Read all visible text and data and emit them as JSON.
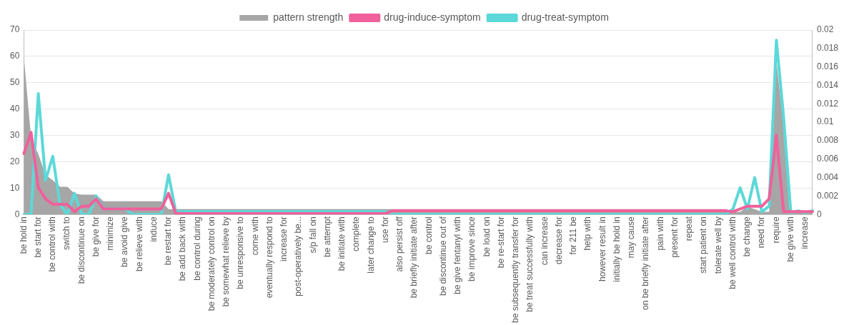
{
  "chart_data": {
    "type": "line",
    "categories": [
      "be hold in",
      null,
      "be start for",
      null,
      "be control with",
      null,
      "switch to",
      null,
      "be discontinue on",
      null,
      "be give for",
      null,
      "minimize",
      null,
      "be avoid give",
      null,
      "be relieve with",
      null,
      "induce",
      null,
      "be restart for",
      null,
      "be add back with",
      null,
      "be control during",
      null,
      "be moderately control on",
      null,
      "be somewhat relieve by",
      null,
      "be unresponsive to",
      null,
      "come with",
      null,
      "eventually respond to",
      null,
      "increase for",
      null,
      "post-operatively be...",
      null,
      "s/p fall on",
      null,
      "be attempt",
      null,
      "be initiate with",
      null,
      "complete",
      null,
      "later change to",
      null,
      "use for",
      null,
      "also persist off",
      null,
      "be briefly initiate after",
      null,
      "be control",
      null,
      "be discontinue out of",
      null,
      "be give fentanyl with",
      null,
      "be improve since",
      null,
      "be load on",
      null,
      "be re-start for",
      null,
      "be subsequently transfer for",
      null,
      "be treat successfully with",
      null,
      "can increase",
      null,
      "decrease for",
      null,
      "for 211 be",
      null,
      "help with",
      null,
      "however result in",
      null,
      "initially be hold in",
      null,
      "may cause",
      null,
      "on be briefly initiate after",
      null,
      "pain with",
      null,
      "present for",
      null,
      "repeat",
      null,
      "start patient on",
      null,
      "tolerate well by",
      null,
      "be well control with",
      null,
      "be change",
      null,
      "need for",
      null,
      "require",
      null,
      "be give with",
      null,
      "increase",
      null
    ],
    "series": [
      {
        "name": "pattern strength",
        "type": "area",
        "color": "#a6a6a6",
        "values": [
          60,
          29,
          23,
          15,
          13,
          10.5,
          10.5,
          8,
          7.5,
          7.5,
          7.5,
          5,
          5,
          5,
          5,
          5,
          5,
          5,
          5,
          5,
          2,
          2,
          2,
          2,
          2,
          2,
          2,
          2,
          2,
          2,
          2,
          2,
          2,
          2,
          2,
          2,
          2,
          2,
          2,
          2,
          2,
          2,
          2,
          2,
          2,
          2,
          2,
          2,
          2,
          2,
          2,
          2,
          2,
          2,
          2,
          2,
          2,
          2,
          2,
          2,
          2,
          2,
          2,
          2,
          2,
          2,
          2,
          2,
          2,
          2,
          2,
          2,
          2,
          2,
          2,
          2,
          2,
          2,
          2,
          2,
          2,
          2,
          2,
          2,
          2,
          2,
          2,
          2,
          2,
          2,
          2,
          2,
          2,
          2,
          2,
          2,
          2,
          2,
          1,
          1,
          3,
          2,
          1,
          1,
          58,
          34,
          1,
          1,
          1,
          1
        ]
      },
      {
        "name": "drug-induce-symptom",
        "type": "line",
        "axis": "y2",
        "color": "#f0609a",
        "values": [
          0.0066,
          0.0089,
          0.0029,
          0.0017,
          0.0011,
          0.0011,
          0.0011,
          0.0003,
          0.0009,
          0.0009,
          0.0017,
          0.0006,
          0.0006,
          0.0006,
          0.0006,
          0.0006,
          0.0006,
          0.0006,
          0.0006,
          0.0006,
          0.0023,
          0.0001,
          0.0001,
          0.0001,
          0.0001,
          0.0001,
          0.0001,
          0.0001,
          0.0001,
          0.0001,
          0.0001,
          0.0001,
          0.0001,
          0.0001,
          0.0001,
          0.0001,
          0.0001,
          0.0001,
          0.0001,
          0.0001,
          0.0001,
          0.0001,
          0.0001,
          0.0001,
          0.0001,
          0.0001,
          0.0001,
          0.0001,
          0.0001,
          0.0001,
          0.0001,
          0.0004,
          0.0004,
          0.0004,
          0.0004,
          0.0004,
          0.0004,
          0.0004,
          0.0004,
          0.0004,
          0.0004,
          0.0004,
          0.0004,
          0.0004,
          0.0004,
          0.0004,
          0.0004,
          0.0004,
          0.0004,
          0.0004,
          0.0004,
          0.0004,
          0.0004,
          0.0004,
          0.0004,
          0.0004,
          0.0004,
          0.0004,
          0.0004,
          0.0004,
          0.0004,
          0.0004,
          0.0004,
          0.0004,
          0.0004,
          0.0004,
          0.0004,
          0.0004,
          0.0004,
          0.0004,
          0.0004,
          0.0004,
          0.0004,
          0.0004,
          0.0004,
          0.0004,
          0.0004,
          0.0004,
          0.0003,
          0.0006,
          0.0009,
          0.0009,
          0.0009,
          0.0017,
          0.0086,
          0.0003,
          0.0003,
          0.0003,
          0.0003,
          0.0003
        ]
      },
      {
        "name": "drug-treat-symptom",
        "type": "line",
        "axis": "y2",
        "color": "#5dd8d8",
        "values": [
          0,
          0,
          0.0131,
          0.0037,
          0.0063,
          0.0011,
          0,
          0.0023,
          0,
          0,
          0.002,
          0.0006,
          0.0006,
          0.0006,
          0.0006,
          0,
          0,
          0,
          0,
          0,
          0.0043,
          0.0003,
          0.0003,
          0.0003,
          0.0003,
          0.0003,
          0.0003,
          0.0003,
          0.0003,
          0.0003,
          0.0003,
          0.0003,
          0.0003,
          0.0003,
          0.0003,
          0.0003,
          0.0003,
          0.0003,
          0.0003,
          0.0003,
          0.0003,
          0.0003,
          0.0003,
          0.0003,
          0.0003,
          0.0003,
          0.0003,
          0.0003,
          0.0003,
          0.0003,
          0.0003,
          0,
          0,
          0,
          0,
          0,
          0,
          0,
          0,
          0,
          0,
          0,
          0,
          0,
          0,
          0,
          0,
          0,
          0,
          0,
          0,
          0,
          0,
          0,
          0,
          0,
          0,
          0,
          0,
          0,
          0,
          0,
          0,
          0,
          0,
          0,
          0,
          0,
          0,
          0,
          0,
          0,
          0,
          0,
          0,
          0,
          0,
          0,
          0.0006,
          0.0029,
          0.0006,
          0.004,
          0.0003,
          0.0009,
          0.0189,
          0.0106,
          0.0002,
          0.0004,
          0.0002,
          0.0004
        ]
      }
    ],
    "ylim": [
      0,
      70
    ],
    "yticks": [
      0,
      10,
      20,
      30,
      40,
      50,
      60,
      70
    ],
    "y2lim": [
      0,
      0.02
    ],
    "y2ticks": [
      0,
      0.002,
      0.004,
      0.006,
      0.008,
      0.01,
      0.012,
      0.014,
      0.016,
      0.018,
      0.02
    ],
    "grid": "y",
    "legend": "top",
    "line_style": "solid",
    "marker": "none"
  }
}
